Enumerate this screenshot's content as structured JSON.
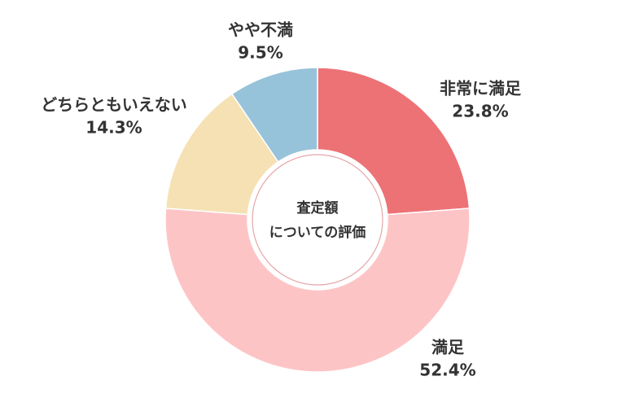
{
  "chart_data": {
    "type": "donut",
    "title_lines": [
      "査定額",
      "についての評価"
    ],
    "categories": [
      "非常に満足",
      "満足",
      "どちらともいえない",
      "やや不満"
    ],
    "values": [
      23.8,
      52.4,
      14.3,
      9.5
    ],
    "value_labels": [
      "23.8%",
      "52.4%",
      "14.3%",
      "9.5%"
    ],
    "colors": [
      "#ec7276",
      "#fdc4c6",
      "#f5e1b3",
      "#97c3da"
    ]
  }
}
